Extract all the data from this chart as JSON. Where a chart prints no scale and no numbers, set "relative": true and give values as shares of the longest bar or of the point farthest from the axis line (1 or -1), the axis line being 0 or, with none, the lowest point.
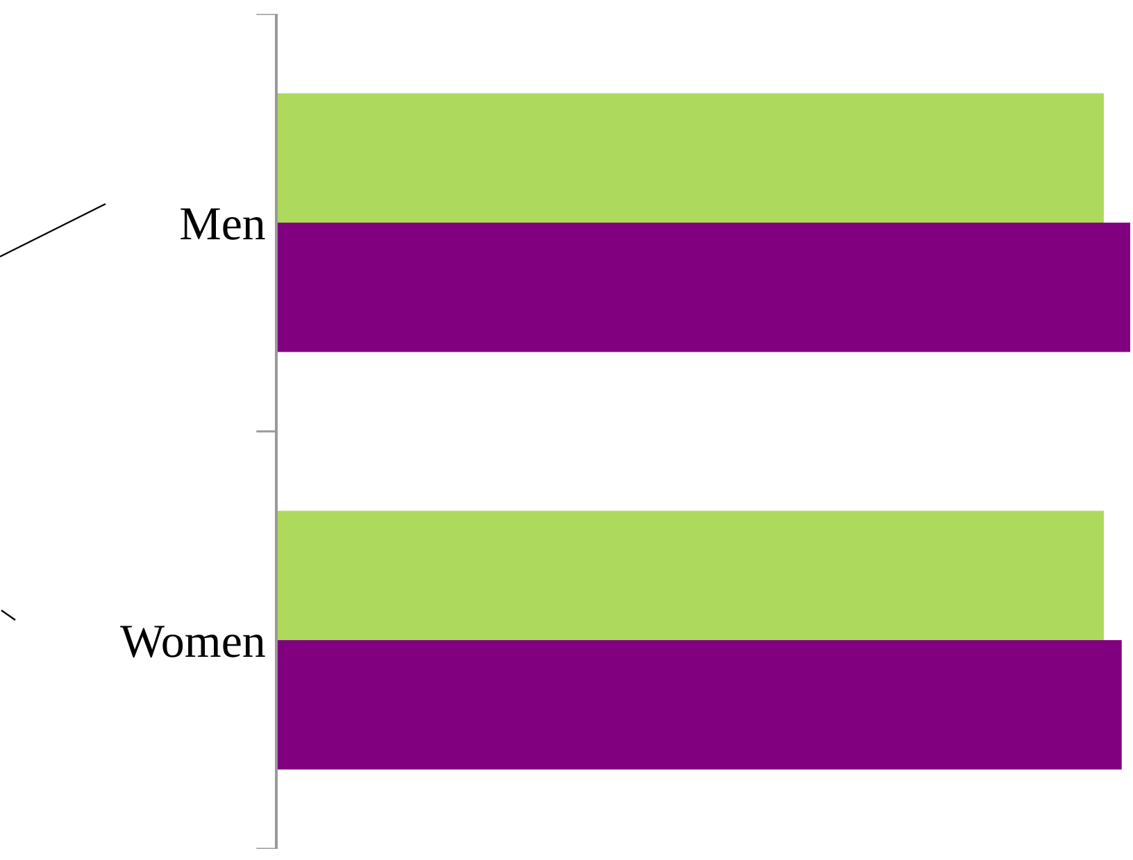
{
  "chart_data": {
    "type": "bar",
    "orientation": "horizontal",
    "relative": true,
    "categories": [
      "Men",
      "Women"
    ],
    "series": [
      {
        "color": "#add95c",
        "values": [
          0.969,
          0.969
        ]
      },
      {
        "color": "#80007f",
        "values": [
          1,
          0.99
        ]
      }
    ]
  }
}
